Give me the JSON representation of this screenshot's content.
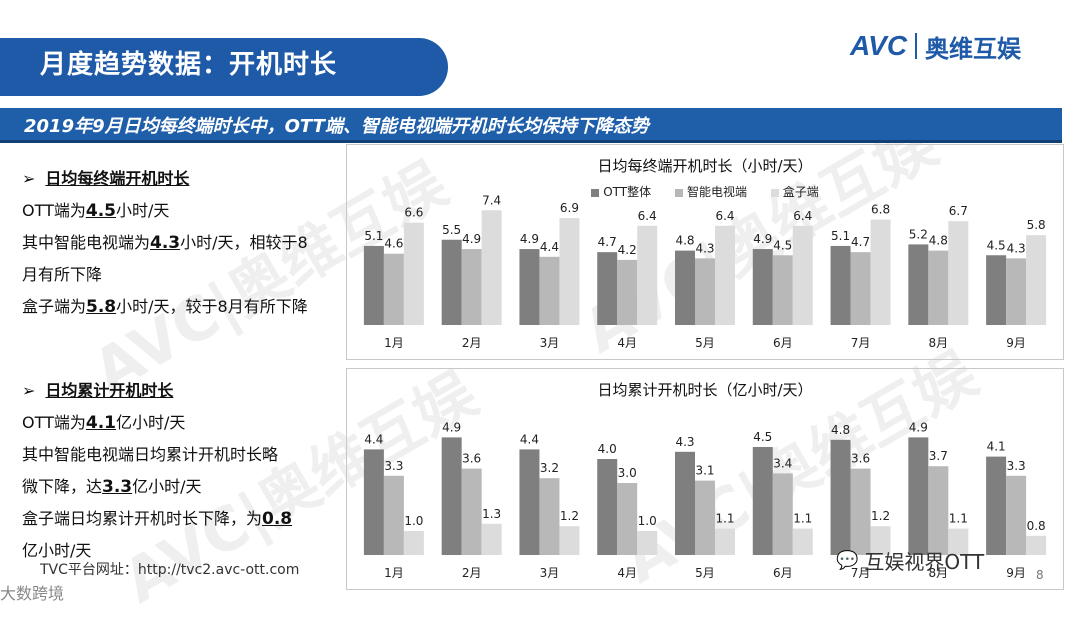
{
  "header": {
    "title": "月度趋势数据：开机时长",
    "logo_brand": "AVC",
    "logo_cn": "奥维互娱",
    "subtitle": "2019年9月日均每终端时长中，OTT端、智能电视端开机时长均保持下降态势"
  },
  "left": {
    "section1": {
      "heading": "日均每终端开机时长",
      "l1_pre": "OTT端为",
      "l1_val": "4.5",
      "l1_post": "小时/天",
      "l2_pre": "其中智能电视端为",
      "l2_val": "4.3",
      "l2_post": "小时/天，相较于8",
      "l3": "月有所下降",
      "l4_pre": "盒子端为",
      "l4_val": "5.8",
      "l4_post": "小时/天，较于8月有所下降"
    },
    "section2": {
      "heading": "日均累计开机时长",
      "l1_pre": "OTT端为",
      "l1_val": "4.1",
      "l1_post": "亿小时/天",
      "l2": "其中智能电视端日均累计开机时长略",
      "l3_pre": "微下降，达",
      "l3_val": "3.3",
      "l3_post": "亿小时/天",
      "l4_pre": "盒子端日均累计开机时长下降，为",
      "l4_val": "0.8",
      "l5": "亿小时/天"
    }
  },
  "footer": {
    "url": "TVC平台网址：http://tvc2.avc-ott.com",
    "wechat": "互娱视界OTT",
    "page": "8",
    "bottom_logo": "大数跨境"
  },
  "watermark": "AVC|奥维互娱",
  "colors": {
    "primary": "#1e5aa8",
    "ott": "#7f7f7f",
    "smart_tv": "#b8b8b8",
    "box": "#dcdcdc"
  },
  "chart_data": [
    {
      "type": "bar",
      "title": "日均每终端开机时长（小时/天）",
      "categories": [
        "1月",
        "2月",
        "3月",
        "4月",
        "5月",
        "6月",
        "7月",
        "8月",
        "9月"
      ],
      "series": [
        {
          "name": "OTT整体",
          "values": [
            5.1,
            5.5,
            4.9,
            4.7,
            4.8,
            4.9,
            5.1,
            5.2,
            4.5
          ]
        },
        {
          "name": "智能电视端",
          "values": [
            4.6,
            4.9,
            4.4,
            4.2,
            4.3,
            4.5,
            4.7,
            4.8,
            4.3
          ]
        },
        {
          "name": "盒子端",
          "values": [
            6.6,
            7.4,
            6.9,
            6.4,
            6.4,
            6.4,
            6.8,
            6.7,
            5.8
          ]
        }
      ],
      "legend": "top",
      "grid": false
    },
    {
      "type": "bar",
      "title": "日均累计开机时长（亿小时/天）",
      "categories": [
        "1月",
        "2月",
        "3月",
        "4月",
        "5月",
        "6月",
        "7月",
        "8月",
        "9月"
      ],
      "series": [
        {
          "name": "OTT整体",
          "values": [
            4.4,
            4.9,
            4.4,
            4.0,
            4.3,
            4.5,
            4.8,
            4.9,
            4.1
          ]
        },
        {
          "name": "智能电视端",
          "values": [
            3.3,
            3.6,
            3.2,
            3.0,
            3.1,
            3.4,
            3.6,
            3.7,
            3.3
          ]
        },
        {
          "name": "盒子端",
          "values": [
            1.0,
            1.3,
            1.2,
            1.0,
            1.1,
            1.1,
            1.2,
            1.1,
            0.8
          ]
        }
      ],
      "legend": "none",
      "grid": false
    }
  ]
}
